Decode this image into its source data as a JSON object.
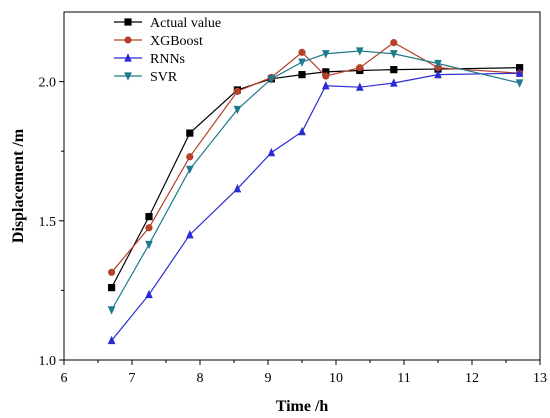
{
  "chart_data": {
    "type": "line",
    "title": "",
    "xlabel": "Time /h",
    "ylabel": "Displacement /m",
    "xlim": [
      6,
      13
    ],
    "ylim": [
      1.0,
      2.25
    ],
    "xticks": [
      6,
      7,
      8,
      9,
      10,
      11,
      12,
      13
    ],
    "yticks": [
      1.0,
      1.5,
      2.0
    ],
    "xtick_labels": [
      "6",
      "7",
      "8",
      "9",
      "10",
      "11",
      "12",
      "13"
    ],
    "ytick_labels": [
      "1.0",
      "1.5",
      "2.0"
    ],
    "grid": false,
    "legend_position": "top-left",
    "x": [
      6.7,
      7.25,
      7.85,
      8.55,
      9.05,
      9.5,
      9.85,
      10.35,
      10.85,
      11.5,
      12.7
    ],
    "series": [
      {
        "name": "Actual value",
        "color": "#000000",
        "marker": "square",
        "values": [
          1.26,
          1.515,
          1.815,
          1.97,
          2.01,
          2.025,
          2.035,
          2.04,
          2.043,
          2.045,
          2.05
        ]
      },
      {
        "name": "XGBoost",
        "color": "#b5412a",
        "marker": "circle",
        "values": [
          1.315,
          1.475,
          1.73,
          1.965,
          2.015,
          2.105,
          2.02,
          2.05,
          2.14,
          2.05,
          2.03
        ]
      },
      {
        "name": "RNNs",
        "color": "#2b2bd4",
        "marker": "triangle-up",
        "values": [
          1.07,
          1.235,
          1.45,
          1.615,
          1.745,
          1.82,
          1.985,
          1.98,
          1.995,
          2.025,
          2.03
        ]
      },
      {
        "name": "SVR",
        "color": "#1f7a8c",
        "marker": "triangle-down",
        "values": [
          1.18,
          1.415,
          1.685,
          1.9,
          2.01,
          2.07,
          2.1,
          2.11,
          2.1,
          2.065,
          1.995
        ]
      }
    ]
  }
}
